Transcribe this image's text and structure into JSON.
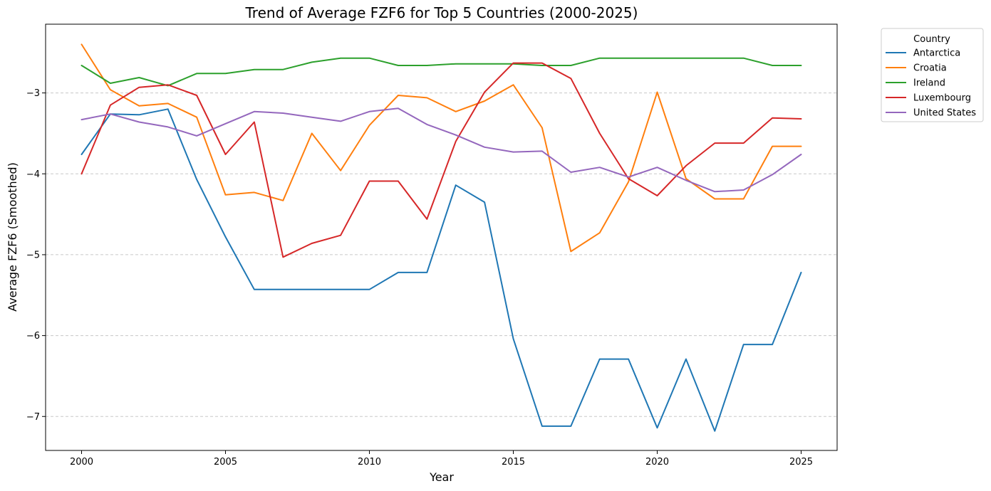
{
  "chart_data": {
    "type": "line",
    "title": "Trend of Average FZF6 for Top 5 Countries (2000-2025)",
    "xlabel": "Year",
    "ylabel": "Average FZF6 (Smoothed)",
    "xlim": [
      1998.75,
      2026.25
    ],
    "ylim": [
      -7.42,
      -2.15
    ],
    "x_ticks": [
      2000,
      2005,
      2010,
      2015,
      2020,
      2025
    ],
    "y_ticks": [
      -7,
      -6,
      -5,
      -4,
      -3
    ],
    "y_tick_labels": [
      "−7",
      "−6",
      "−5",
      "−4",
      "−3"
    ],
    "grid": {
      "axis": "y",
      "style": "dashed"
    },
    "legend": {
      "title": "Country",
      "placement": "outside-top-right"
    },
    "x": [
      2000,
      2001,
      2002,
      2003,
      2004,
      2005,
      2006,
      2007,
      2008,
      2009,
      2010,
      2011,
      2012,
      2013,
      2014,
      2015,
      2016,
      2017,
      2018,
      2019,
      2020,
      2021,
      2022,
      2023,
      2024,
      2025
    ],
    "series": [
      {
        "name": "Antarctica",
        "color": "#1f77b4",
        "values": [
          -3.76,
          -3.26,
          -3.27,
          -3.2,
          -4.07,
          -4.78,
          -5.43,
          -5.43,
          -5.43,
          -5.43,
          -5.43,
          -5.22,
          -5.22,
          -4.14,
          -4.35,
          -6.04,
          -7.12,
          -7.12,
          -6.29,
          -6.29,
          -7.14,
          -6.29,
          -7.18,
          -6.11,
          -6.11,
          -5.22
        ]
      },
      {
        "name": "Croatia",
        "color": "#ff7f0e",
        "values": [
          -2.4,
          -2.96,
          -3.16,
          -3.13,
          -3.3,
          -4.26,
          -4.23,
          -4.33,
          -3.5,
          -3.96,
          -3.4,
          -3.03,
          -3.06,
          -3.23,
          -3.1,
          -2.9,
          -3.43,
          -4.96,
          -4.73,
          -4.1,
          -2.99,
          -4.06,
          -4.31,
          -4.31,
          -3.66,
          -3.66
        ]
      },
      {
        "name": "Ireland",
        "color": "#2ca02c",
        "values": [
          -2.66,
          -2.88,
          -2.81,
          -2.91,
          -2.76,
          -2.76,
          -2.71,
          -2.71,
          -2.62,
          -2.57,
          -2.57,
          -2.66,
          -2.66,
          -2.64,
          -2.64,
          -2.64,
          -2.66,
          -2.66,
          -2.57,
          -2.57,
          -2.57,
          -2.57,
          -2.57,
          -2.57,
          -2.66,
          -2.66
        ]
      },
      {
        "name": "Luxembourg",
        "color": "#d62728",
        "values": [
          -4.0,
          -3.15,
          -2.93,
          -2.9,
          -3.03,
          -3.76,
          -3.36,
          -5.03,
          -4.86,
          -4.76,
          -4.09,
          -4.09,
          -4.56,
          -3.6,
          -2.99,
          -2.63,
          -2.63,
          -2.82,
          -3.5,
          -4.06,
          -4.27,
          -3.9,
          -3.62,
          -3.62,
          -3.31,
          -3.32
        ]
      },
      {
        "name": "United States",
        "color": "#9467bd",
        "values": [
          -3.33,
          -3.26,
          -3.36,
          -3.42,
          -3.53,
          -3.38,
          -3.23,
          -3.25,
          -3.3,
          -3.35,
          -3.23,
          -3.19,
          -3.39,
          -3.52,
          -3.67,
          -3.73,
          -3.72,
          -3.98,
          -3.92,
          -4.04,
          -3.92,
          -4.08,
          -4.22,
          -4.2,
          -4.01,
          -3.76
        ]
      }
    ]
  }
}
